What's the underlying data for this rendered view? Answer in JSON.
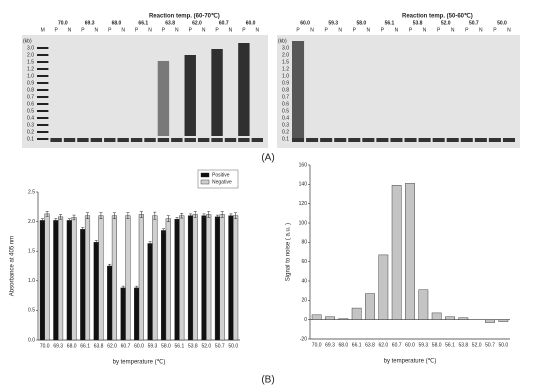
{
  "panels": {
    "gels": [
      {
        "title": "Reaction temp. (60-70℃)",
        "temperatures": [
          "70.0",
          "69.3",
          "68.0",
          "66.1",
          "63.8",
          "62.0",
          "60.7",
          "60.0"
        ],
        "lanes": [
          "M",
          "P",
          "N",
          "P",
          "N",
          "P",
          "N",
          "P",
          "N",
          "P",
          "N",
          "P",
          "N",
          "P",
          "N",
          "P",
          "N"
        ],
        "ladder": {
          "unit": "(kb)",
          "sizes": [
            "3.0",
            "2.0",
            "1.5",
            "1.2",
            "1.0",
            "0.9",
            "0.8",
            "0.7",
            "0.6",
            "0.5",
            "0.4",
            "0.3",
            "0.2",
            "0.1"
          ]
        }
      },
      {
        "title": "Reaction temp. (50-60℃)",
        "temperatures": [
          "60.0",
          "59.3",
          "58.0",
          "56.1",
          "53.8",
          "52.0",
          "50.7",
          "50.0"
        ],
        "lanes": [
          "P",
          "N",
          "P",
          "N",
          "P",
          "N",
          "P",
          "N",
          "P",
          "N",
          "P",
          "N",
          "P",
          "N",
          "P",
          "N"
        ],
        "ladder": {
          "unit": "(kb)",
          "sizes": [
            "3.0",
            "2.0",
            "1.5",
            "1.2",
            "1.0",
            "0.9",
            "0.8",
            "0.7",
            "0.6",
            "0.5",
            "0.4",
            "0.3",
            "0.2",
            "0.1"
          ]
        }
      }
    ],
    "labels": [
      "(A)",
      "(B)"
    ]
  },
  "chart_data": [
    {
      "type": "bar",
      "y_label": "Absorbance at 405 nm",
      "x_label": "by temperature (℃)",
      "categories": [
        "70.0",
        "69.3",
        "68.0",
        "66.1",
        "63.8",
        "62.0",
        "60.7",
        "60.0",
        "59.3",
        "58.0",
        "56.1",
        "53.8",
        "52.0",
        "50.7",
        "50.0"
      ],
      "series": [
        {
          "name": "Positive",
          "color": "#111111",
          "values": [
            2.02,
            2.02,
            2.02,
            1.87,
            1.65,
            1.25,
            0.88,
            0.88,
            1.63,
            1.85,
            2.04,
            2.1,
            2.1,
            2.08,
            2.1
          ],
          "errors": [
            0.03,
            0.03,
            0.03,
            0.03,
            0.03,
            0.03,
            0.03,
            0.03,
            0.03,
            0.03,
            0.03,
            0.03,
            0.03,
            0.03,
            0.03
          ]
        },
        {
          "name": "Negative",
          "color": "#d0d0d0",
          "values": [
            2.13,
            2.08,
            2.07,
            2.1,
            2.1,
            2.1,
            2.1,
            2.12,
            2.1,
            2.05,
            2.1,
            2.12,
            2.12,
            2.12,
            2.1
          ],
          "errors": [
            0.04,
            0.04,
            0.04,
            0.05,
            0.05,
            0.05,
            0.05,
            0.05,
            0.06,
            0.05,
            0.04,
            0.05,
            0.05,
            0.05,
            0.05
          ]
        }
      ],
      "ylim": [
        0,
        2.5
      ],
      "yticks": [
        {
          "value": 0,
          "label": "0.0"
        },
        0.5,
        {
          "value": 1,
          "label": "1.0"
        },
        1.5,
        {
          "value": 2,
          "label": "2.0"
        },
        2.5
      ],
      "legend": "top-right"
    },
    {
      "type": "bar",
      "y_label": "Signal to noise ( a.u. )",
      "x_label": "by temperature (℃)",
      "categories": [
        "70.0",
        "69.3",
        "68.0",
        "66.1",
        "63.8",
        "62.0",
        "60.7",
        "60.0",
        "59.3",
        "58.0",
        "56.1",
        "53.8",
        "52.0",
        "50.7",
        "50.0"
      ],
      "series": [
        {
          "name": null,
          "color": "#c4c4c4",
          "values": [
            5,
            3,
            1,
            12,
            27,
            67,
            139,
            141,
            31,
            7,
            3,
            2,
            0,
            -3,
            -2
          ]
        }
      ],
      "ylim": [
        -20,
        160
      ],
      "yticks": [
        -20,
        0,
        20,
        40,
        60,
        80,
        100,
        120,
        140,
        160
      ],
      "zero_line": true
    }
  ]
}
